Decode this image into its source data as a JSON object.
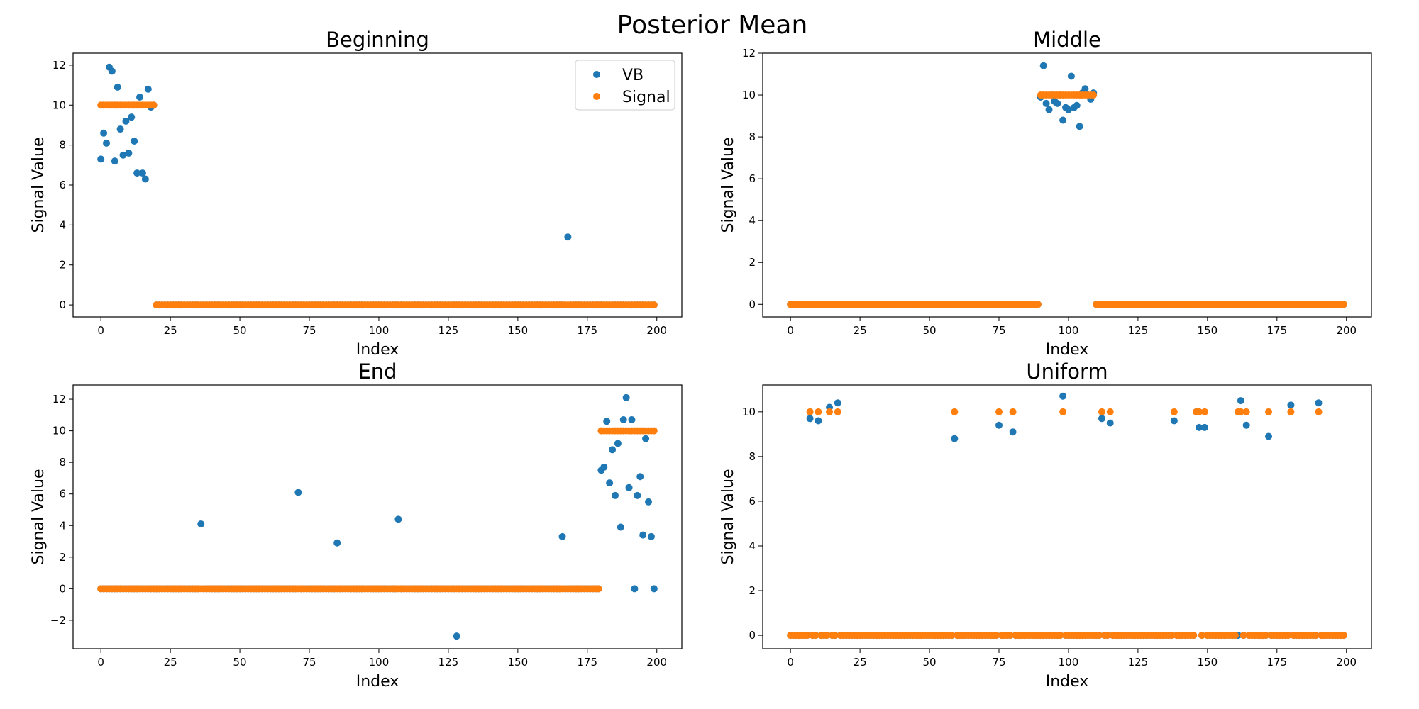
{
  "figure": {
    "suptitle": "Posterior Mean"
  },
  "colors": {
    "VB": "#1f77b4",
    "Signal": "#ff7f0e"
  },
  "legend": {
    "panel": 0,
    "placement": "upper right",
    "entries": [
      "VB",
      "Signal"
    ]
  },
  "chart_data": [
    {
      "type": "scatter",
      "title": "Beginning",
      "xlabel": "Index",
      "ylabel": "Signal Value",
      "xlim": [
        -10,
        209
      ],
      "ylim": [
        -0.6,
        12.6
      ],
      "xticks": [
        0,
        25,
        50,
        75,
        100,
        125,
        150,
        175,
        200
      ],
      "yticks": [
        0,
        2,
        4,
        6,
        8,
        10,
        12
      ],
      "n": 200,
      "series": [
        {
          "name": "VB",
          "values": [
            7.3,
            8.6,
            8.1,
            11.9,
            11.7,
            7.2,
            10.9,
            8.8,
            7.5,
            9.2,
            7.6,
            9.4,
            8.2,
            6.6,
            10.4,
            6.6,
            6.3,
            10.8,
            9.9,
            10.0
          ],
          "nonzero": [
            [
              168,
              3.4
            ]
          ]
        },
        {
          "name": "Signal",
          "values": [
            10,
            10,
            10,
            10,
            10,
            10,
            10,
            10,
            10,
            10,
            10,
            10,
            10,
            10,
            10,
            10,
            10,
            10,
            10,
            10
          ]
        }
      ]
    },
    {
      "type": "scatter",
      "title": "Middle",
      "xlabel": "Index",
      "ylabel": "Signal Value",
      "xlim": [
        -10,
        209
      ],
      "ylim": [
        -0.6,
        12.0
      ],
      "xticks": [
        0,
        25,
        50,
        75,
        100,
        125,
        150,
        175,
        200
      ],
      "yticks": [
        0,
        2,
        4,
        6,
        8,
        10,
        12
      ],
      "n": 200,
      "series": [
        {
          "name": "VB",
          "offset": 90,
          "values": [
            9.9,
            11.4,
            9.6,
            9.3,
            10.0,
            9.7,
            9.6,
            10.0,
            8.8,
            9.4,
            9.3,
            10.9,
            9.4,
            9.5,
            8.5,
            10.1,
            10.3,
            10.0,
            9.8,
            10.1
          ]
        },
        {
          "name": "Signal",
          "ones": [
            [
              90,
              109,
              10
            ]
          ]
        }
      ]
    },
    {
      "type": "scatter",
      "title": "End",
      "xlabel": "Index",
      "ylabel": "Signal Value",
      "xlim": [
        -10,
        209
      ],
      "ylim": [
        -3.8,
        12.9
      ],
      "xticks": [
        0,
        25,
        50,
        75,
        100,
        125,
        150,
        175,
        200
      ],
      "yticks": [
        -2,
        0,
        2,
        4,
        6,
        8,
        10,
        12
      ],
      "n": 200,
      "series": [
        {
          "name": "VB",
          "offset": 180,
          "values": [
            7.5,
            7.7,
            10.6,
            6.7,
            8.8,
            5.9,
            9.2,
            3.9,
            10.7,
            12.1,
            6.4,
            10.7,
            0.0,
            5.9,
            7.1,
            3.4,
            9.5,
            5.5,
            3.3,
            0.0
          ],
          "nonzero": [
            [
              36,
              4.1
            ],
            [
              71,
              6.1
            ],
            [
              85,
              2.9
            ],
            [
              107,
              4.4
            ],
            [
              128,
              -3.0
            ],
            [
              166,
              3.3
            ]
          ]
        },
        {
          "name": "Signal",
          "ones": [
            [
              180,
              199,
              10
            ]
          ]
        }
      ]
    },
    {
      "type": "scatter",
      "title": "Uniform",
      "xlabel": "Index",
      "ylabel": "Signal Value",
      "xlim": [
        -10,
        209
      ],
      "ylim": [
        -0.6,
        11.2
      ],
      "xticks": [
        0,
        25,
        50,
        75,
        100,
        125,
        150,
        175,
        200
      ],
      "yticks": [
        0,
        2,
        4,
        6,
        8,
        10
      ],
      "n": 200,
      "series": [
        {
          "name": "VB",
          "nonzero": [
            [
              7,
              9.7
            ],
            [
              10,
              9.6
            ],
            [
              14,
              10.2
            ],
            [
              17,
              10.4
            ],
            [
              59,
              8.8
            ],
            [
              75,
              9.4
            ],
            [
              80,
              9.1
            ],
            [
              98,
              10.7
            ],
            [
              112,
              9.7
            ],
            [
              115,
              9.5
            ],
            [
              138,
              9.6
            ],
            [
              146,
              10.0
            ],
            [
              147,
              9.3
            ],
            [
              149,
              9.3
            ],
            [
              162,
              10.5
            ],
            [
              164,
              9.4
            ],
            [
              172,
              8.9
            ],
            [
              180,
              10.3
            ],
            [
              190,
              10.4
            ]
          ]
        },
        {
          "name": "Signal",
          "nonzero": [
            [
              7,
              10
            ],
            [
              10,
              10
            ],
            [
              14,
              10
            ],
            [
              17,
              10
            ],
            [
              59,
              10
            ],
            [
              75,
              10
            ],
            [
              80,
              10
            ],
            [
              98,
              10
            ],
            [
              112,
              10
            ],
            [
              115,
              10
            ],
            [
              138,
              10
            ],
            [
              146,
              10
            ],
            [
              147,
              10
            ],
            [
              149,
              10
            ],
            [
              161,
              10
            ],
            [
              162,
              10
            ],
            [
              164,
              10
            ],
            [
              172,
              10
            ],
            [
              180,
              10
            ],
            [
              190,
              10
            ]
          ]
        }
      ]
    }
  ]
}
